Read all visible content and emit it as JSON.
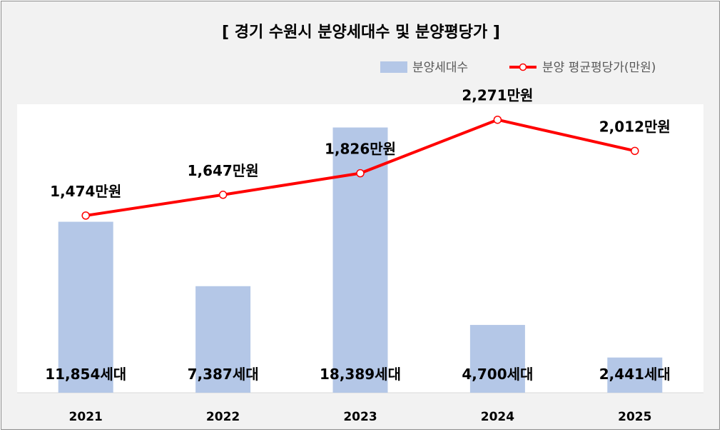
{
  "chart_data": {
    "type": "bar",
    "title": "[ 경기 수원시 분양세대수 및 분양평당가 ]",
    "categories": [
      "2021",
      "2022",
      "2023",
      "2024",
      "2025"
    ],
    "series": [
      {
        "name": "분양세대수",
        "type": "bar",
        "color": "#b4c7e7",
        "values": [
          11854,
          7387,
          18389,
          4700,
          2441
        ],
        "labels": [
          "11,854세대",
          "7,387세대",
          "18,389세대",
          "4,700세대",
          "2,441세대"
        ],
        "ylim": [
          0,
          20000
        ]
      },
      {
        "name": "분양 평균평당가(만원)",
        "type": "line",
        "color": "#ff0000",
        "values": [
          1474,
          1647,
          1826,
          2271,
          2012
        ],
        "labels": [
          "1,474만원",
          "1,647만원",
          "1,826만원",
          "2,271만원",
          "2,012만원"
        ],
        "ylim": [
          0,
          2400
        ]
      }
    ],
    "legend_position": "top-right",
    "grid": false
  }
}
